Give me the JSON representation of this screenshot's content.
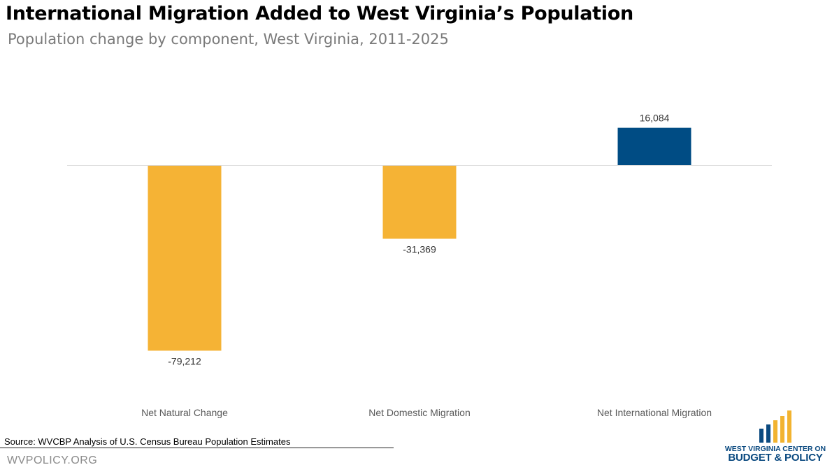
{
  "title": "International Migration Added to West Virginia’s Population",
  "subtitle": "Population change by component, West Virginia, 2011-2025",
  "source": "Source: WVCBP Analysis of U.S. Census Bureau Population Estimates",
  "site": "WVPOLICY.ORG",
  "logo": {
    "line1": "WEST VIRGINIA CENTER ON",
    "line2": "BUDGET & POLICY"
  },
  "colors": {
    "negative": "#F5B335",
    "positive": "#004C84",
    "logo_blue": "#0B4A80",
    "logo_gold": "#F2B330"
  },
  "chart_data": {
    "type": "bar",
    "title": "International Migration Added to West Virginia’s Population",
    "subtitle": "Population change by component, West Virginia, 2011-2025",
    "categories": [
      "Net Natural Change",
      "Net Domestic Migration",
      "Net International Migration"
    ],
    "values": [
      -79212,
      -31369,
      16084
    ],
    "data_labels": [
      "-79,212",
      "-31,369",
      "16,084"
    ],
    "ylim": [
      -79212,
      16084
    ],
    "grid": false,
    "legend": "none"
  }
}
